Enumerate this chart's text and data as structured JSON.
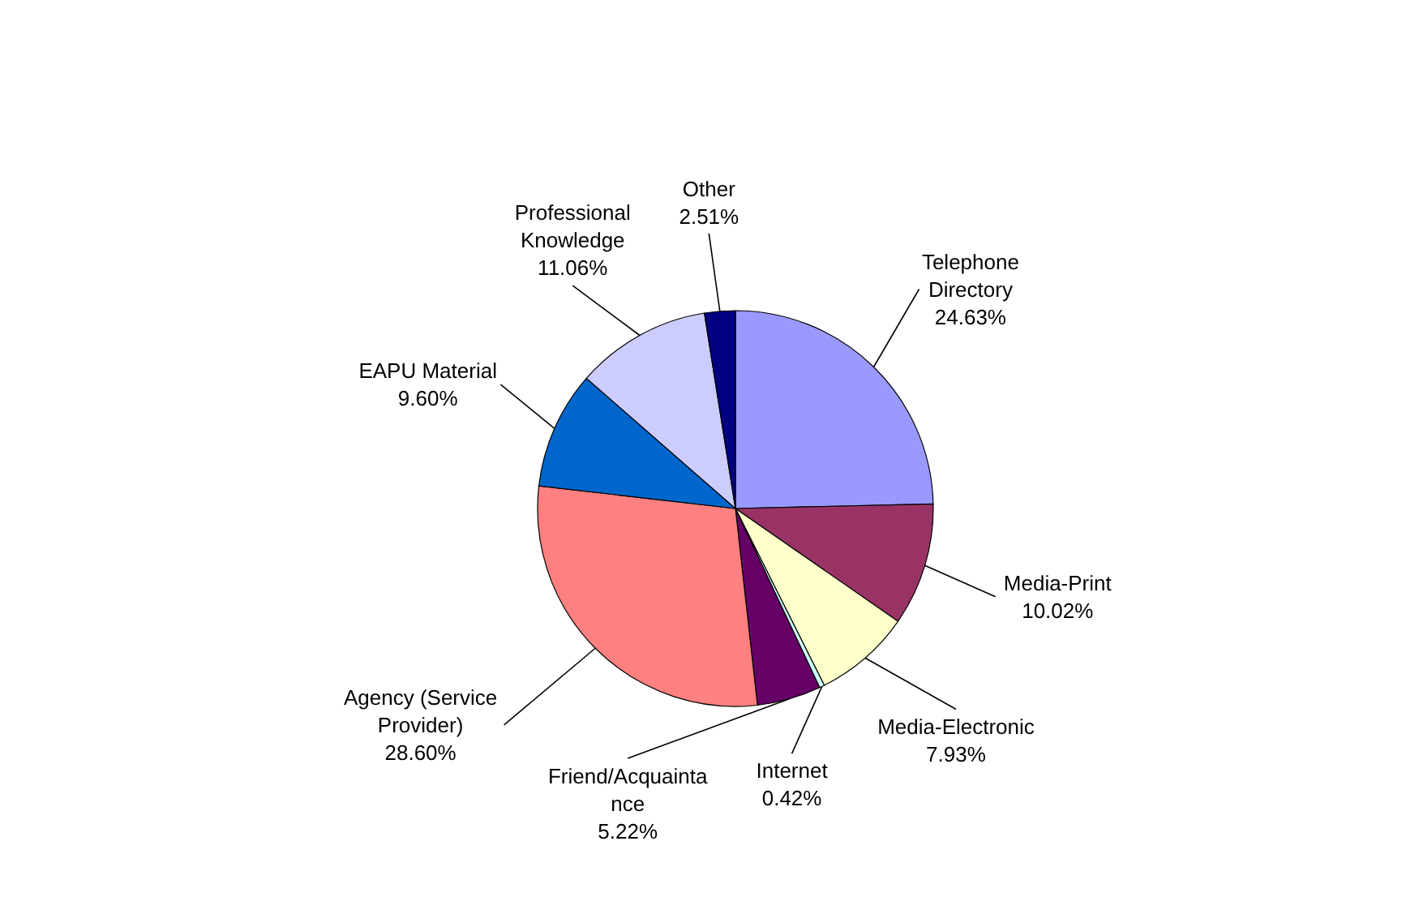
{
  "chart_data": {
    "type": "pie",
    "categories": [
      "Telephone\nDirectory",
      "Media-Print",
      "Media-Electronic",
      "Internet",
      "Friend/Acquainta\nnce",
      "Agency (Service\nProvider)",
      "EAPU Material",
      "Professional\nKnowledge",
      "Other"
    ],
    "values": [
      24.63,
      10.02,
      7.93,
      0.42,
      5.22,
      28.6,
      9.6,
      11.06,
      2.51
    ],
    "colors": [
      "#9999ff",
      "#993366",
      "#ffffcc",
      "#ccffff",
      "#660066",
      "#ff8080",
      "#0066cc",
      "#ccccff",
      "#000080"
    ],
    "value_labels": [
      "24.63%",
      "10.02%",
      "7.93%",
      "0.42%",
      "5.22%",
      "28.60%",
      "9.60%",
      "11.06%",
      "2.51%"
    ]
  }
}
